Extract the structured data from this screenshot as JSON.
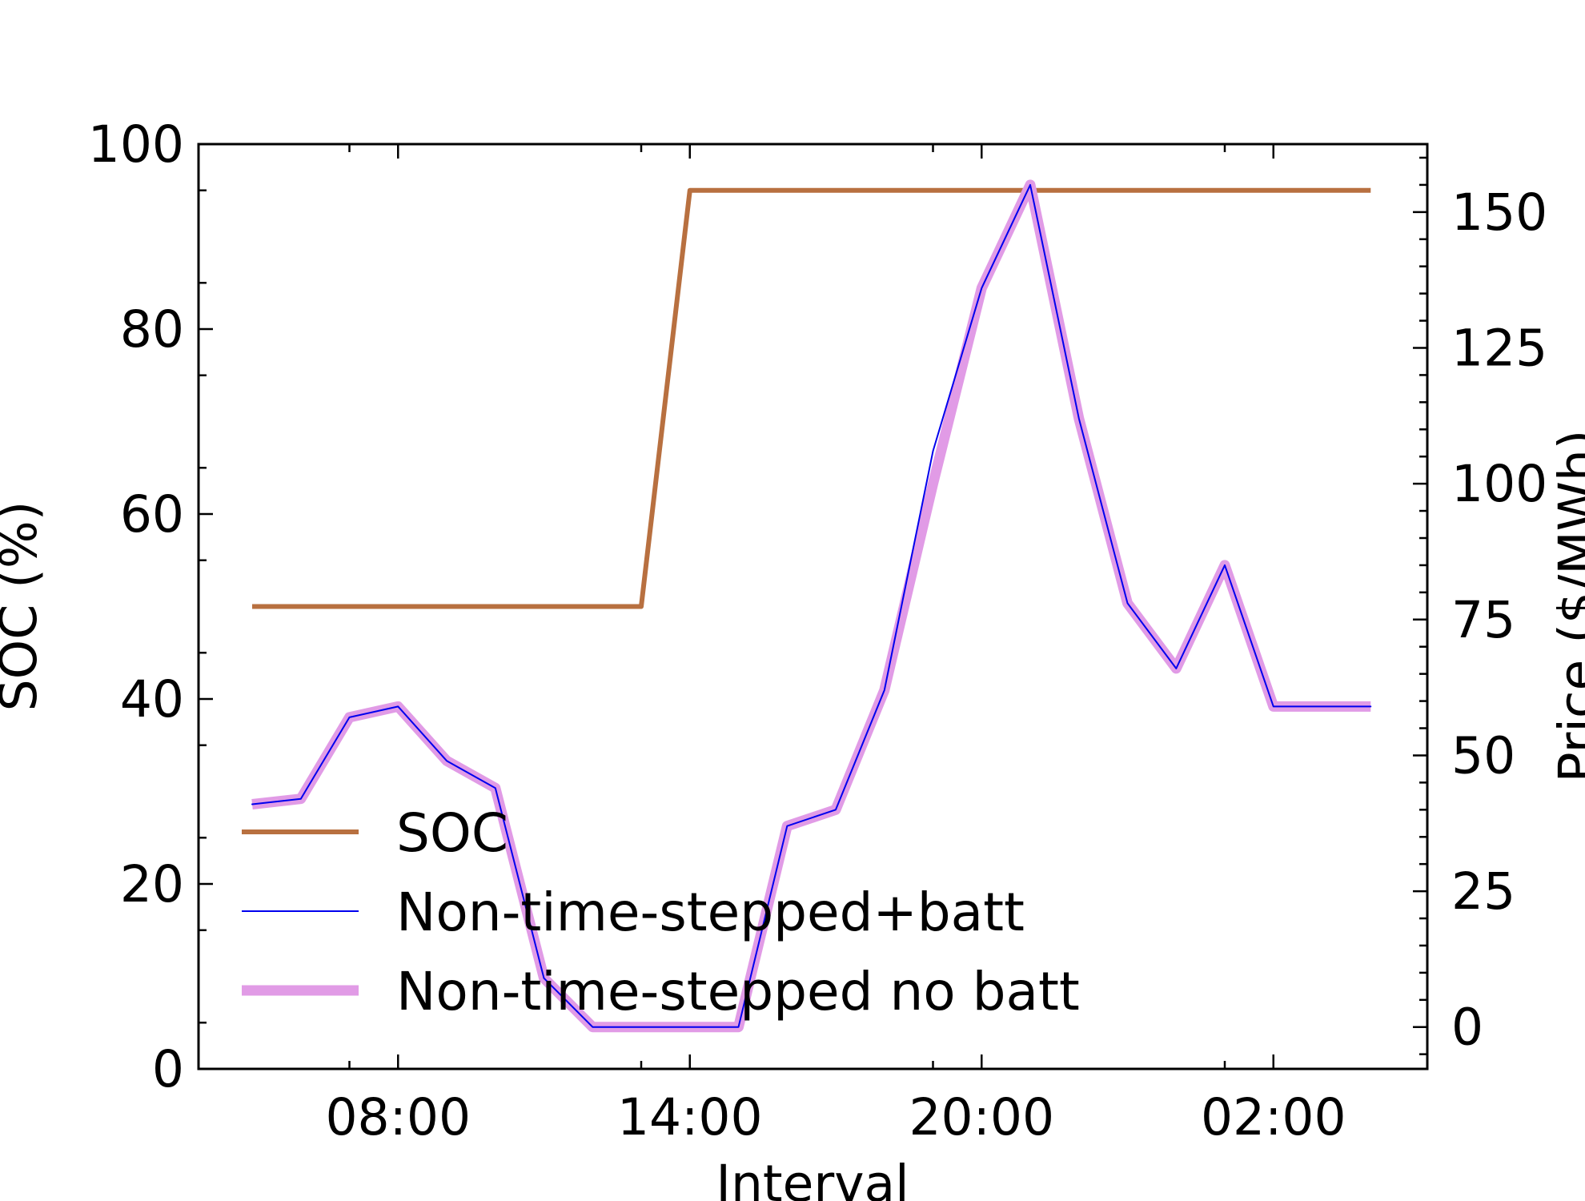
{
  "chart_data": {
    "type": "line",
    "xlabel": "Interval",
    "ylabel_left": "SOC (%)",
    "ylabel_right": "Price ($/MWh)",
    "x_ticks": [
      "08:00",
      "14:00",
      "20:00",
      "02:00"
    ],
    "ylim_left": [
      0,
      100
    ],
    "y_ticks_left": [
      "0",
      "20",
      "40",
      "60",
      "80",
      "100"
    ],
    "ylim_right": [
      -7.7,
      162.5
    ],
    "y_ticks_right": [
      "0",
      "25",
      "50",
      "75",
      "100",
      "125",
      "150"
    ],
    "x": [
      "05:00",
      "06:00",
      "07:00",
      "08:00",
      "09:00",
      "10:00",
      "11:00",
      "12:00",
      "13:00",
      "14:00",
      "15:00",
      "16:00",
      "17:00",
      "18:00",
      "19:00",
      "20:00",
      "21:00",
      "22:00",
      "23:00",
      "00:00",
      "01:00",
      "02:00",
      "03:00",
      "04:00"
    ],
    "legend_position": "lower-left",
    "grid": false,
    "series": [
      {
        "name": "SOC",
        "axis": "left",
        "color": "#b87040",
        "values": [
          50,
          50,
          50,
          50,
          50,
          50,
          50,
          50,
          50,
          95,
          95,
          95,
          95,
          95,
          95,
          95,
          95,
          95,
          95,
          95,
          95,
          95,
          95,
          95
        ]
      },
      {
        "name": "Non-time-stepped+batt",
        "axis": "right",
        "color": "#0000ee",
        "values": [
          41,
          42,
          57,
          59,
          49,
          44,
          9,
          0,
          0,
          0,
          0,
          37,
          40,
          62,
          106,
          136,
          155,
          112,
          78,
          66,
          85,
          59,
          59,
          59
        ]
      },
      {
        "name": "Non-time-stepped no batt",
        "axis": "right",
        "color": "#e19be6",
        "values": [
          41,
          42,
          57,
          59,
          49,
          44,
          9,
          0,
          0,
          0,
          0,
          37,
          40,
          62,
          100,
          136,
          155,
          112,
          78,
          66,
          85,
          59,
          59,
          59
        ]
      }
    ]
  }
}
